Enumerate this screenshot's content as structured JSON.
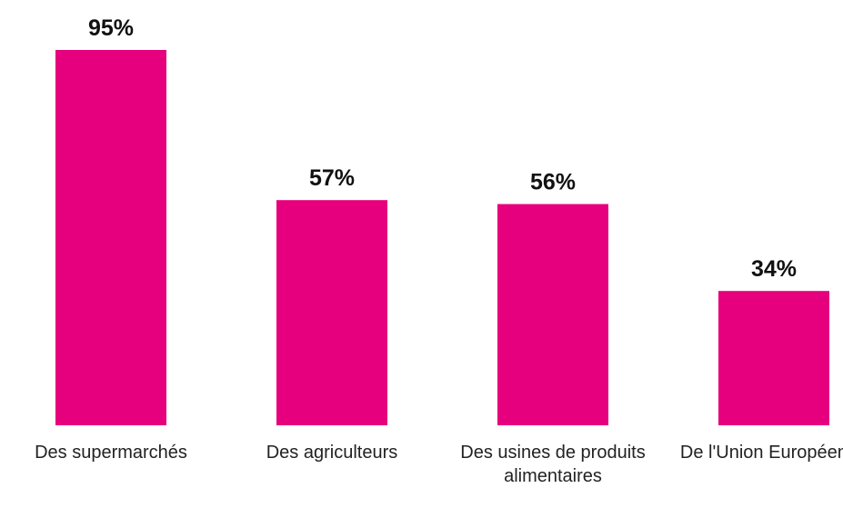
{
  "chart_data": {
    "type": "bar",
    "categories": [
      "Des supermarchés",
      "Des agriculteurs",
      "Des usines de produits alimentaires",
      "De l'Union Européenne"
    ],
    "values": [
      95,
      57,
      56,
      34
    ],
    "value_labels": [
      "95%",
      "57%",
      "56%",
      "34%"
    ],
    "color": "#e6007e",
    "ylim": [
      0,
      100
    ]
  }
}
